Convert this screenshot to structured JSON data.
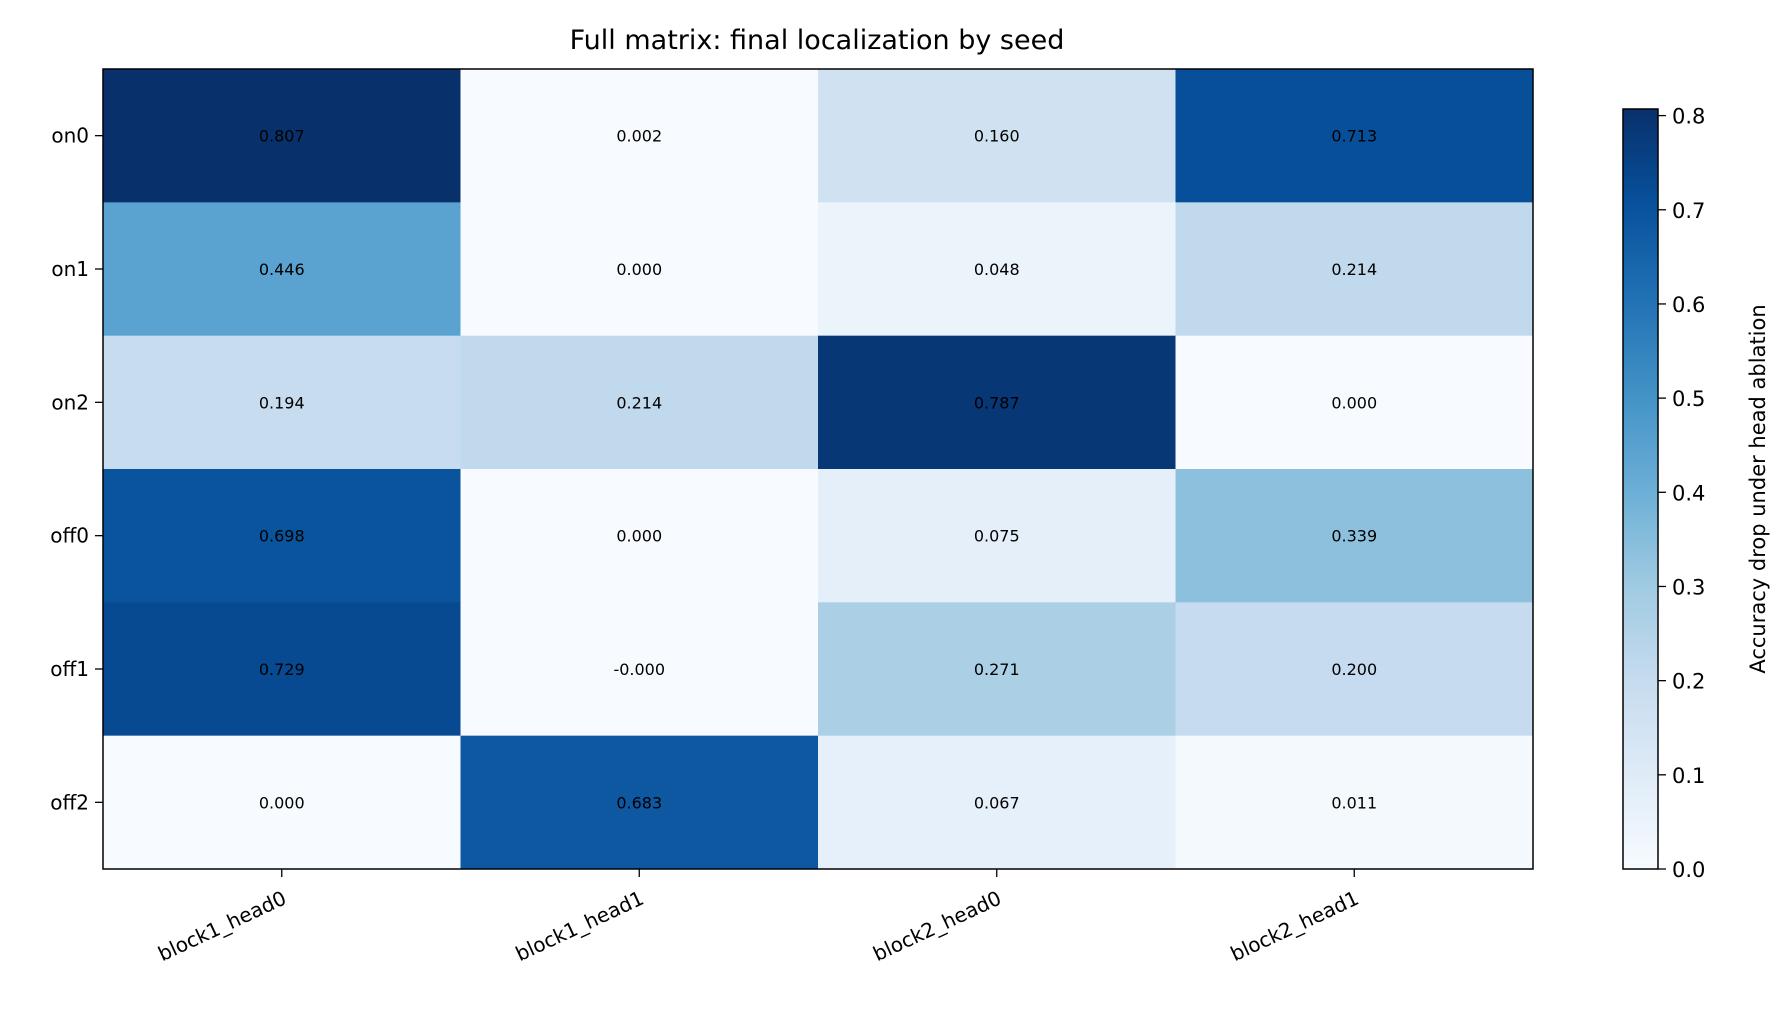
{
  "chart_data": {
    "type": "heatmap",
    "title": "Full matrix: final localization by seed",
    "xlabel": "",
    "ylabel": "",
    "x_categories": [
      "block1_head0",
      "block1_head1",
      "block2_head0",
      "block2_head1"
    ],
    "y_categories": [
      "on0",
      "on1",
      "on2",
      "off0",
      "off1",
      "off2"
    ],
    "values": [
      [
        0.807,
        0.002,
        0.16,
        0.713
      ],
      [
        0.446,
        0.0,
        0.048,
        0.214
      ],
      [
        0.194,
        0.214,
        0.787,
        0.0
      ],
      [
        0.698,
        0.0,
        0.075,
        0.339
      ],
      [
        0.729,
        -0.0,
        0.271,
        0.2
      ],
      [
        0.0,
        0.683,
        0.067,
        0.011
      ]
    ],
    "value_labels": [
      [
        "0.807",
        "0.002",
        "0.160",
        "0.713"
      ],
      [
        "0.446",
        "0.000",
        "0.048",
        "0.214"
      ],
      [
        "0.194",
        "0.214",
        "0.787",
        "0.000"
      ],
      [
        "0.698",
        "0.000",
        "0.075",
        "0.339"
      ],
      [
        "0.729",
        "-0.000",
        "0.271",
        "0.200"
      ],
      [
        "0.000",
        "0.683",
        "0.067",
        "0.011"
      ]
    ],
    "colormap": "Blues",
    "vmin": 0.0,
    "vmax": 0.807,
    "colorbar": {
      "label": "Accuracy drop under head ablation",
      "ticks": [
        0.0,
        0.1,
        0.2,
        0.3,
        0.4,
        0.5,
        0.6,
        0.7,
        0.8
      ],
      "tick_labels": [
        "0.0",
        "0.1",
        "0.2",
        "0.3",
        "0.4",
        "0.5",
        "0.6",
        "0.7",
        "0.8"
      ],
      "placement": "right"
    },
    "grid": false
  }
}
